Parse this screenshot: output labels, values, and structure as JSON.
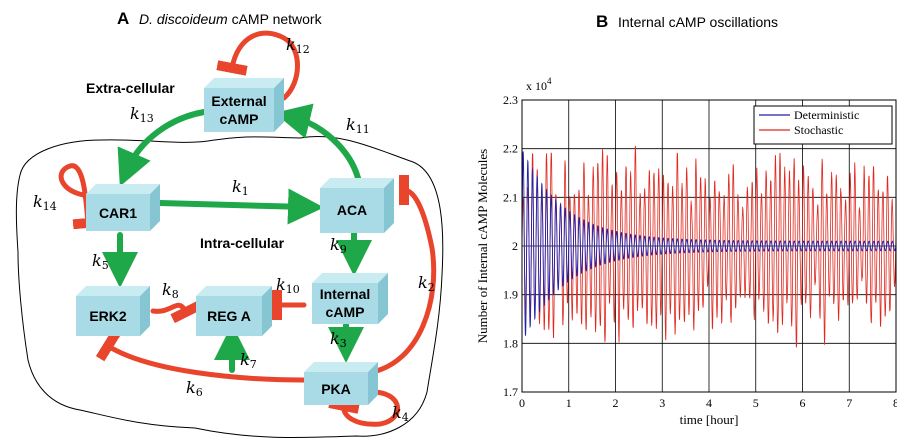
{
  "panel_a": {
    "letter": "A",
    "title_italic": "D. discoideum",
    "title_rest": " cAMP network",
    "region_extra": "Extra-cellular",
    "region_intra": "Intra-cellular",
    "nodes": {
      "external": [
        "External",
        "cAMP"
      ],
      "car1": [
        "CAR1"
      ],
      "aca": [
        "ACA"
      ],
      "erk2": [
        "ERK2"
      ],
      "rega": [
        "REG A"
      ],
      "internal": [
        "Internal",
        "cAMP"
      ],
      "pka": [
        "PKA"
      ]
    },
    "rate_labels": {
      "k1": [
        "k",
        "1"
      ],
      "k2": [
        "k",
        "2"
      ],
      "k3": [
        "k",
        "3"
      ],
      "k4": [
        "k",
        "4"
      ],
      "k5": [
        "k",
        "5"
      ],
      "k6": [
        "k",
        "6"
      ],
      "k7": [
        "k",
        "7"
      ],
      "k8": [
        "k",
        "8"
      ],
      "k9": [
        "k",
        "9"
      ],
      "k10": [
        "k",
        "10"
      ],
      "k11": [
        "k",
        "11"
      ],
      "k12": [
        "k",
        "12"
      ],
      "k13": [
        "k",
        "13"
      ],
      "k14": [
        "k",
        "14"
      ]
    },
    "colors": {
      "activation": "#1fa849",
      "inhibition": "#e8452c",
      "node": "#a9dbe6"
    }
  },
  "panel_b": {
    "letter": "B",
    "title": "Internal cAMP oscillations"
  },
  "chart_data": {
    "type": "line",
    "xlabel": "time [hour]",
    "ylabel": "Number of Internal cAMP Molecules",
    "y_multiplier": "x 10",
    "y_exponent": "4",
    "xlim": [
      0,
      8
    ],
    "ylim": [
      1.7,
      2.3
    ],
    "xticks": [
      "0",
      "1",
      "2",
      "3",
      "4",
      "5",
      "6",
      "7",
      "8"
    ],
    "yticks": [
      "1.7",
      "1.8",
      "1.9",
      "2",
      "2.1",
      "2.2",
      "2.3"
    ],
    "grid": true,
    "legend_position": "top-right",
    "series": [
      {
        "name": "Deterministic",
        "color": "#2222aa",
        "form": "damped",
        "mean": 2.0,
        "period_hours": 0.1,
        "amplitude_start": 0.2,
        "amplitude_end": 0.01,
        "tau_hours": 0.9
      },
      {
        "name": "Stochastic",
        "color": "#e0281e",
        "form": "sustained-noisy",
        "mean": 2.0,
        "period_hours": 0.1,
        "amplitude_min": 0.05,
        "amplitude_max": 0.23
      }
    ]
  }
}
